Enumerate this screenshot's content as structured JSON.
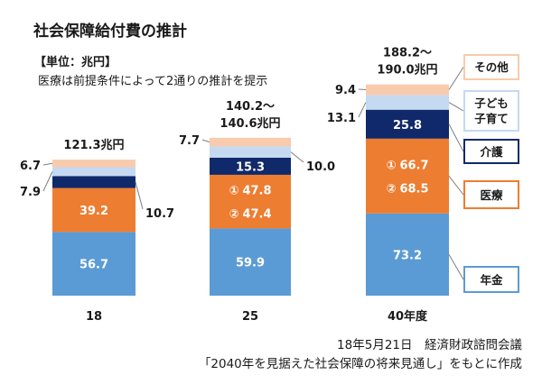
{
  "chart_data": {
    "type": "bar",
    "stacked": true,
    "title": "社会保障給付費の推計",
    "subtitle": "【単位：兆円】",
    "annotation": "医療は前提条件によって2通りの推計を提示",
    "categories": [
      "18",
      "25",
      "40年度"
    ],
    "series": [
      {
        "name": "年金",
        "color": "#5b9bd5",
        "values": [
          56.7,
          59.9,
          73.2
        ]
      },
      {
        "name": "医療",
        "color": "#ed7d31",
        "values": [
          39.2,
          47.8,
          66.7
        ],
        "alt_values": [
          null,
          47.4,
          68.5
        ]
      },
      {
        "name": "介護",
        "color": "#10296a",
        "values": [
          10.7,
          15.3,
          25.8
        ]
      },
      {
        "name": "子ども子育て",
        "color": "#c5d9f1",
        "values": [
          7.9,
          10.0,
          13.1
        ]
      },
      {
        "name": "その他",
        "color": "#f8cbad",
        "values": [
          6.7,
          7.7,
          9.4
        ]
      }
    ],
    "estimate_markers": [
      "①",
      "②"
    ],
    "totals": [
      {
        "low": 121.3
      },
      {
        "low": 140.2,
        "high": 140.6
      },
      {
        "low": 188.2,
        "high": 190.0
      }
    ],
    "total_unit": "兆円",
    "range_mark": "～",
    "legend": "right",
    "grid": false
  },
  "source": {
    "line1": "18年5月21日　経済財政諮問会議",
    "line2": "「2040年を見据えた社会保障の将来見通し」をもとに作成"
  }
}
